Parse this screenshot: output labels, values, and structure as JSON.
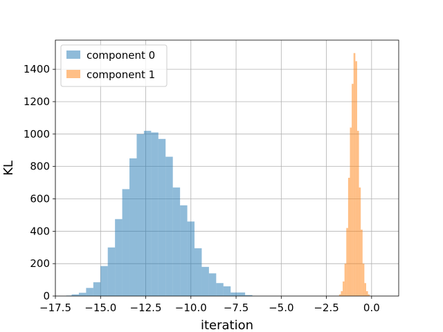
{
  "chart_data": {
    "type": "histogram",
    "title": "",
    "xlabel": "iteration",
    "ylabel": "KL",
    "xlim": [
      -17.5,
      1.5
    ],
    "ylim": [
      0,
      1580
    ],
    "grid": true,
    "legend": {
      "placement": "top-left"
    },
    "xticks": [
      -17.5,
      -15.0,
      -12.5,
      -10.0,
      -7.5,
      -5.0,
      -2.5,
      0.0
    ],
    "xtick_labels": [
      "−17.5",
      "−15.0",
      "−12.5",
      "−10.0",
      "−7.5",
      "−5.0",
      "−2.5",
      "0.0"
    ],
    "yticks": [
      0,
      200,
      400,
      600,
      800,
      1000,
      1200,
      1400
    ],
    "ytick_labels": [
      "0",
      "200",
      "400",
      "600",
      "800",
      "1000",
      "1200",
      "1400"
    ],
    "series": [
      {
        "name": "component 0",
        "color": "#1f77b4",
        "opacity": 0.5,
        "bins": [
          [
            -16.9,
            -16.6,
            3
          ],
          [
            -16.6,
            -16.2,
            10
          ],
          [
            -16.2,
            -15.8,
            20
          ],
          [
            -15.8,
            -15.4,
            50
          ],
          [
            -15.4,
            -15.0,
            85
          ],
          [
            -15.0,
            -14.6,
            185
          ],
          [
            -14.6,
            -14.2,
            300
          ],
          [
            -14.2,
            -13.8,
            475
          ],
          [
            -13.8,
            -13.4,
            660
          ],
          [
            -13.4,
            -13.0,
            850
          ],
          [
            -13.0,
            -12.6,
            1000
          ],
          [
            -12.6,
            -12.2,
            1020
          ],
          [
            -12.2,
            -11.8,
            1010
          ],
          [
            -11.8,
            -11.4,
            970
          ],
          [
            -11.4,
            -11.0,
            860
          ],
          [
            -11.0,
            -10.6,
            670
          ],
          [
            -10.6,
            -10.2,
            560
          ],
          [
            -10.2,
            -9.8,
            460
          ],
          [
            -9.8,
            -9.4,
            295
          ],
          [
            -9.4,
            -9.0,
            180
          ],
          [
            -9.0,
            -8.6,
            140
          ],
          [
            -8.6,
            -8.2,
            80
          ],
          [
            -8.2,
            -7.8,
            60
          ],
          [
            -7.8,
            -7.4,
            22
          ],
          [
            -7.4,
            -7.0,
            22
          ],
          [
            -7.0,
            -6.6,
            6
          ]
        ]
      },
      {
        "name": "component 1",
        "color": "#ff7f0e",
        "opacity": 0.5,
        "bins": [
          [
            -1.8,
            -1.7,
            10
          ],
          [
            -1.7,
            -1.6,
            30
          ],
          [
            -1.6,
            -1.5,
            90
          ],
          [
            -1.5,
            -1.4,
            200
          ],
          [
            -1.4,
            -1.3,
            420
          ],
          [
            -1.3,
            -1.2,
            730
          ],
          [
            -1.2,
            -1.1,
            1040
          ],
          [
            -1.1,
            -1.0,
            1310
          ],
          [
            -1.0,
            -0.9,
            1500
          ],
          [
            -0.9,
            -0.8,
            1450
          ],
          [
            -0.8,
            -0.7,
            1020
          ],
          [
            -0.7,
            -0.6,
            670
          ],
          [
            -0.6,
            -0.5,
            410
          ],
          [
            -0.5,
            -0.4,
            200
          ],
          [
            -0.4,
            -0.3,
            80
          ],
          [
            -0.3,
            -0.2,
            30
          ],
          [
            -0.2,
            -0.1,
            10
          ]
        ]
      }
    ]
  }
}
